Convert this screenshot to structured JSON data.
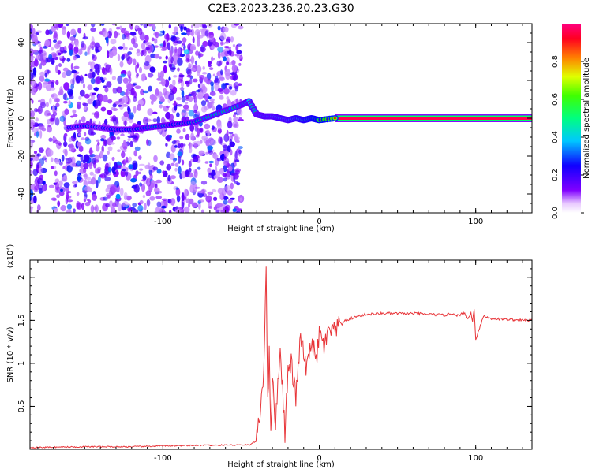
{
  "figure": {
    "title": "C2E3.2023.236.20.23.G30"
  },
  "chart_data": [
    {
      "type": "heatmap",
      "title": "C2E3.2023.236.20.23.G30",
      "xlabel": "Height of straight line (km)",
      "ylabel": "Frequency (Hz)",
      "xlim": [
        -185,
        136
      ],
      "ylim": [
        -50,
        50
      ],
      "x_ticks": [
        -100,
        0,
        100
      ],
      "y_ticks": [
        -40,
        -20,
        0,
        20,
        40
      ],
      "grid": false,
      "colorbar": {
        "label": "Normalized spectral amplitude",
        "range": [
          0.0,
          1.0
        ],
        "ticks": [
          0.0,
          0.2,
          0.4,
          0.6,
          0.8
        ],
        "colormap": [
          "#ffffff",
          "#8000ff",
          "#0000ff",
          "#00ffff",
          "#00ff00",
          "#ffff00",
          "#ff8000",
          "#ff0000",
          "#ff0080"
        ]
      },
      "signal_trace": {
        "x": [
          -160,
          -150,
          -140,
          -130,
          -120,
          -110,
          -100,
          -90,
          -80,
          -70,
          -60,
          -50,
          -45,
          -40,
          -35,
          -30,
          -25,
          -20,
          -15,
          -10,
          -5,
          0,
          10,
          20,
          40,
          60,
          80,
          100,
          120,
          136
        ],
        "y": [
          -5,
          -4,
          -5,
          -6,
          -6,
          -5,
          -4,
          -3,
          -2,
          1,
          4,
          7,
          9,
          2,
          1,
          1,
          0,
          -1,
          0,
          -1,
          0,
          -1,
          0,
          0,
          0,
          0,
          0,
          0,
          0,
          0
        ],
        "amplitude": [
          0.35,
          0.4,
          0.35,
          0.4,
          0.4,
          0.45,
          0.45,
          0.4,
          0.45,
          0.5,
          0.5,
          0.5,
          0.55,
          0.5,
          0.55,
          0.55,
          0.6,
          0.6,
          0.65,
          0.7,
          0.75,
          0.8,
          0.9,
          0.95,
          0.95,
          0.95,
          0.95,
          0.95,
          0.95,
          0.95
        ]
      }
    },
    {
      "type": "line",
      "xlabel": "Height of straight line (km)",
      "ylabel": "SNR (10 * v/v)",
      "y_multiplier": "(x10⁴)",
      "xlim": [
        -185,
        136
      ],
      "ylim": [
        0,
        2.2
      ],
      "x_ticks": [
        -100,
        0,
        100
      ],
      "y_ticks": [
        0.5,
        1.0,
        1.5,
        2.0
      ],
      "grid": false,
      "series": [
        {
          "color": "#e8363a",
          "x": [
            -185,
            -150,
            -120,
            -100,
            -60,
            -45,
            -40,
            -38,
            -36,
            -35,
            -34,
            -33,
            -32,
            -31,
            -30,
            -28,
            -25,
            -22,
            -20,
            -18,
            -15,
            -12,
            -10,
            -8,
            -5,
            -2,
            0,
            3,
            5,
            8,
            10,
            12,
            15,
            20,
            25,
            30,
            40,
            50,
            60,
            70,
            80,
            85,
            90,
            92,
            95,
            97,
            98,
            99,
            100,
            105,
            110,
            120,
            130,
            136
          ],
          "y": [
            0.02,
            0.03,
            0.03,
            0.04,
            0.05,
            0.05,
            0.1,
            0.4,
            0.8,
            1.3,
            2.2,
            0.5,
            1.1,
            0.3,
            0.8,
            0.3,
            1.2,
            0.2,
            0.9,
            1.0,
            0.6,
            1.3,
            1.1,
            0.9,
            1.3,
            1.0,
            1.35,
            1.2,
            1.3,
            1.4,
            1.35,
            1.42,
            1.48,
            1.52,
            1.55,
            1.57,
            1.58,
            1.58,
            1.58,
            1.57,
            1.56,
            1.58,
            1.55,
            1.6,
            1.52,
            1.58,
            1.5,
            1.62,
            1.28,
            1.55,
            1.52,
            1.51,
            1.5,
            1.5
          ]
        }
      ]
    }
  ]
}
